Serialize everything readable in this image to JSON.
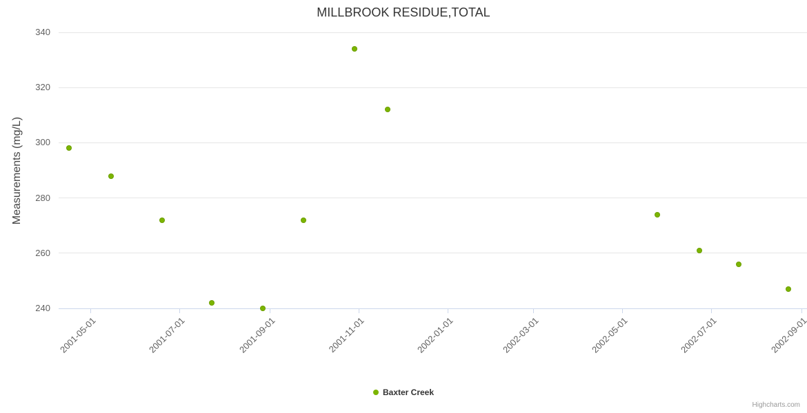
{
  "chart_data": {
    "type": "scatter",
    "title": "MILLBROOK RESIDUE,TOTAL",
    "xlabel": "",
    "ylabel": "Measurements (mg/L)",
    "ylim": [
      240,
      340
    ],
    "y_ticks": [
      240,
      260,
      280,
      300,
      320,
      340
    ],
    "x_ticks": [
      "2001-05-01",
      "2001-07-01",
      "2001-09-01",
      "2001-11-01",
      "2002-01-01",
      "2002-03-01",
      "2002-05-01",
      "2002-07-01",
      "2002-09-01"
    ],
    "x_range": [
      "2001-04-09",
      "2002-09-05"
    ],
    "grid": true,
    "legend_position": "bottom-center",
    "series": [
      {
        "name": "Baxter Creek",
        "color": "#7cb500",
        "marker": "circle",
        "points": [
          {
            "x": "2001-04-16",
            "y": 298
          },
          {
            "x": "2001-05-15",
            "y": 288
          },
          {
            "x": "2001-06-19",
            "y": 272
          },
          {
            "x": "2001-07-23",
            "y": 242
          },
          {
            "x": "2001-08-27",
            "y": 240
          },
          {
            "x": "2001-09-24",
            "y": 272
          },
          {
            "x": "2001-10-29",
            "y": 334
          },
          {
            "x": "2001-11-21",
            "y": 312
          },
          {
            "x": "2002-05-25",
            "y": 274
          },
          {
            "x": "2002-06-23",
            "y": 261
          },
          {
            "x": "2002-07-20",
            "y": 256
          },
          {
            "x": "2002-08-23",
            "y": 247
          }
        ]
      }
    ]
  },
  "credit": {
    "label": "Highcharts.com"
  }
}
